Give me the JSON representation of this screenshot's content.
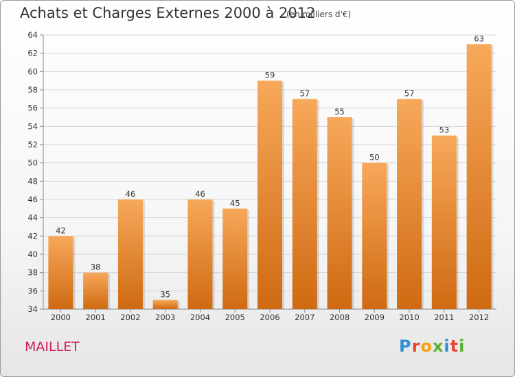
{
  "header": {
    "title": "Achats et Charges Externes 2000 à 2012",
    "subtitle": "(en milliers d'€)"
  },
  "footer": {
    "place": "MAILLET",
    "logo_text": "Proxiti"
  },
  "colors": {
    "bar_light": "#f7a85a",
    "bar_dark": "#cf6a12",
    "place_text": "#d0205a",
    "logo_letters": [
      "#2f8fd6",
      "#e8442c",
      "#f2a20c",
      "#5bb033",
      "#2f8fd6",
      "#e8442c",
      "#5bb033"
    ]
  },
  "chart_data": {
    "type": "bar",
    "title": "Achats et Charges Externes 2000 à 2012",
    "subtitle": "(en milliers d'€)",
    "categories": [
      "2000",
      "2001",
      "2002",
      "2003",
      "2004",
      "2005",
      "2006",
      "2007",
      "2008",
      "2009",
      "2010",
      "2011",
      "2012"
    ],
    "values": [
      42,
      38,
      46,
      35,
      46,
      45,
      59,
      57,
      55,
      50,
      57,
      53,
      63
    ],
    "ylim": [
      34,
      64
    ],
    "yticks": [
      34,
      36,
      38,
      40,
      42,
      44,
      46,
      48,
      50,
      52,
      54,
      56,
      58,
      60,
      62,
      64
    ],
    "grid": true,
    "data_labels": true
  }
}
